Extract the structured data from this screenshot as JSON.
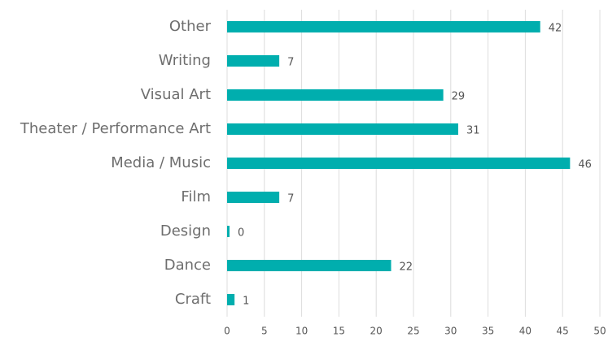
{
  "chart_data": {
    "type": "bar",
    "orientation": "horizontal",
    "categories": [
      "Other",
      "Writing",
      "Visual Art",
      "Theater / Performance Art",
      "Media / Music",
      "Film",
      "Design",
      "Dance",
      "Craft"
    ],
    "values": [
      42,
      7,
      29,
      31,
      46,
      7,
      0,
      22,
      1
    ],
    "color": "#00aeae",
    "xlim": [
      0,
      50
    ],
    "xticks": [
      0,
      5,
      10,
      15,
      20,
      25,
      30,
      35,
      40,
      45,
      50
    ],
    "grid": true
  }
}
